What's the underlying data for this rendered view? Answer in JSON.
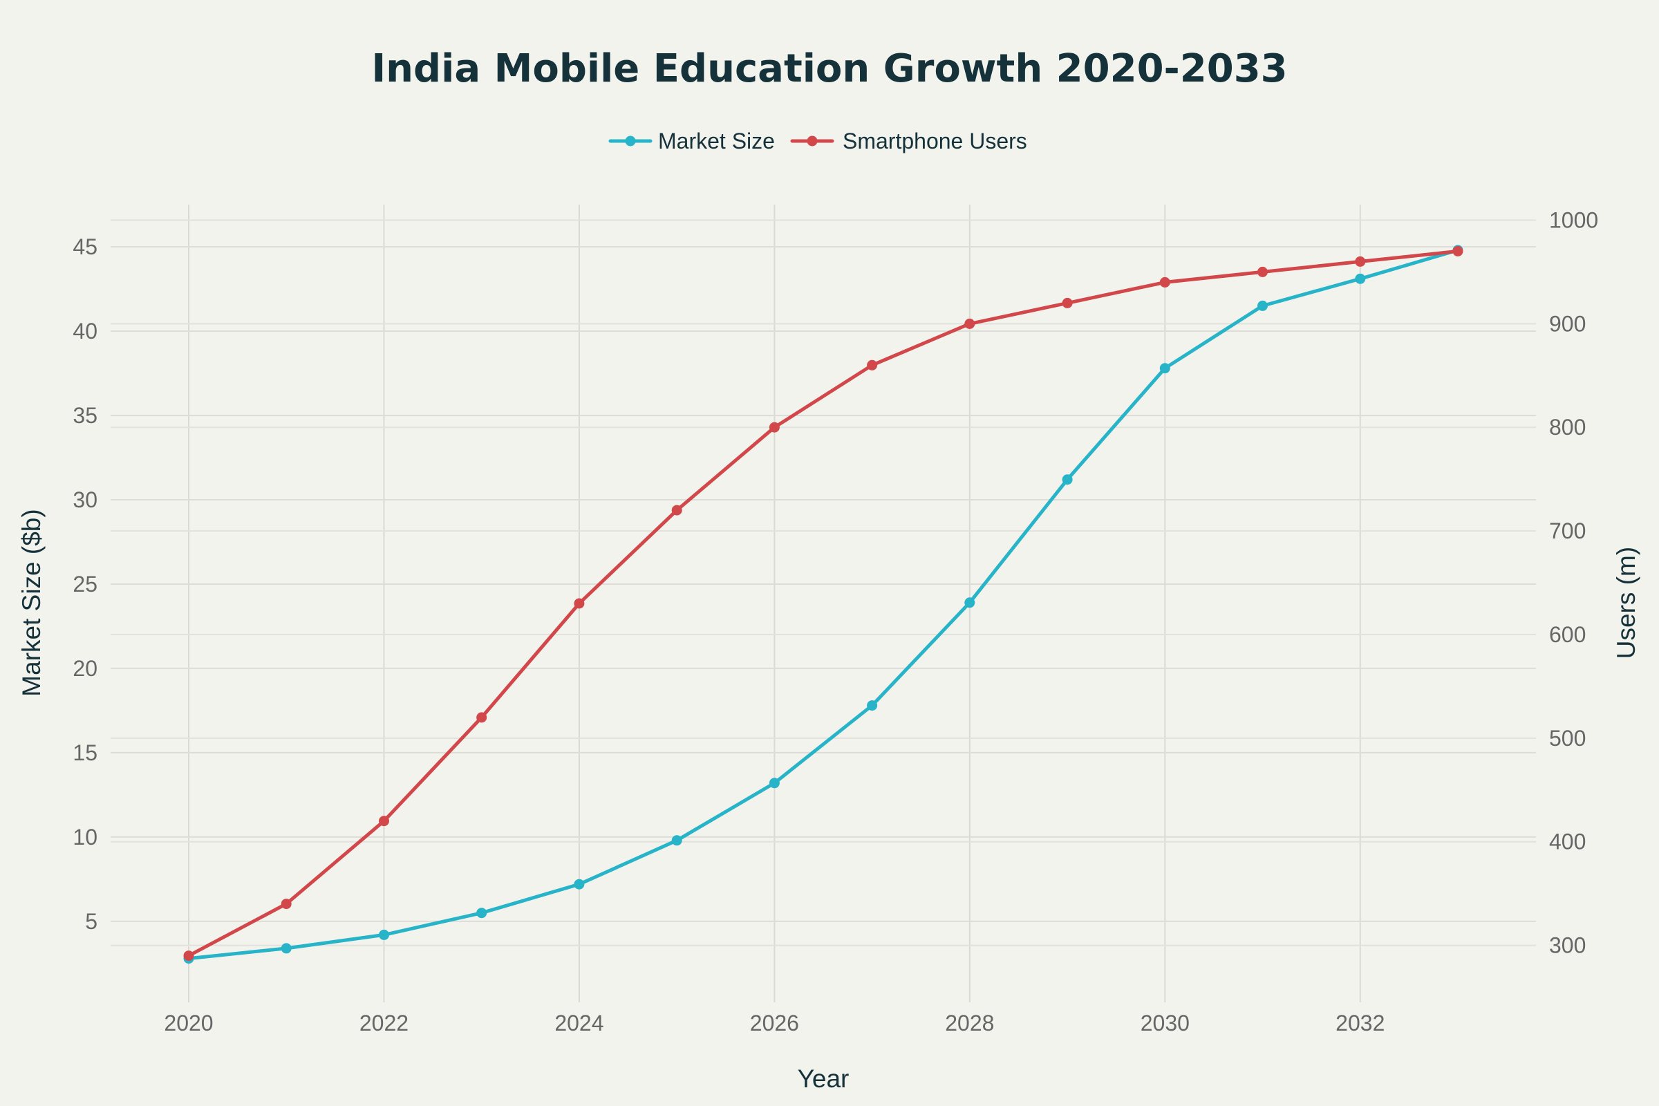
{
  "chart_data": {
    "type": "line",
    "title": "India Mobile Education Growth 2020-2033",
    "xlabel": "Year",
    "ylabel": "Market Size ($b)",
    "y2label": "Users (m)",
    "x": [
      2020,
      2021,
      2022,
      2023,
      2024,
      2025,
      2026,
      2027,
      2028,
      2029,
      2030,
      2031,
      2032,
      2033
    ],
    "xticks": [
      "2020",
      "2022",
      "2024",
      "2026",
      "2028",
      "2030",
      "2032"
    ],
    "yticks": [
      "5",
      "10",
      "15",
      "20",
      "25",
      "30",
      "35",
      "40",
      "45"
    ],
    "y2ticks": [
      "300",
      "400",
      "500",
      "600",
      "700",
      "800",
      "900",
      "1000"
    ],
    "xlim": [
      2019.2,
      2033.8
    ],
    "ylim": [
      0.2,
      47.5
    ],
    "y2lim": [
      245,
      1015
    ],
    "grid": true,
    "legend_position": "top-center",
    "series": [
      {
        "name": "Market Size",
        "axis": "left",
        "color": "#27b4c8",
        "values": [
          2.8,
          3.4,
          4.2,
          5.5,
          7.2,
          9.8,
          13.2,
          17.8,
          23.9,
          31.2,
          37.8,
          41.5,
          43.1,
          44.8
        ]
      },
      {
        "name": "Smartphone Users",
        "axis": "right",
        "color": "#d2474a",
        "values": [
          290,
          340,
          420,
          520,
          630,
          720,
          800,
          860,
          900,
          920,
          940,
          950,
          960,
          970
        ]
      }
    ]
  }
}
